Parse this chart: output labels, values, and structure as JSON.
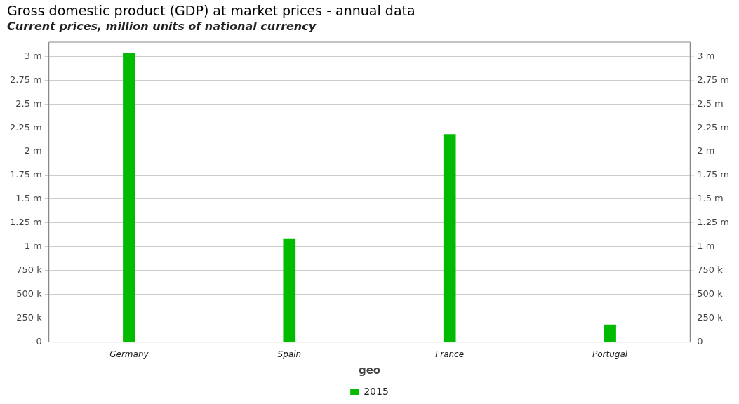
{
  "chart_data": {
    "type": "bar",
    "title": "Gross domestic product (GDP) at market prices - annual data",
    "subtitle": "Current prices, million units of national currency",
    "xlabel": "geo",
    "categories": [
      "Germany",
      "Spain",
      "France",
      "Portugal"
    ],
    "series": [
      {
        "name": "2015",
        "color": "#00bb00",
        "values": [
          3030000,
          1080000,
          2180000,
          180000
        ]
      }
    ],
    "ylim": [
      0,
      3150000
    ],
    "yticks": [
      {
        "value": 0,
        "label": "0"
      },
      {
        "value": 250000,
        "label": "250 k"
      },
      {
        "value": 500000,
        "label": "500 k"
      },
      {
        "value": 750000,
        "label": "750 k"
      },
      {
        "value": 1000000,
        "label": "1 m"
      },
      {
        "value": 1250000,
        "label": "1.25 m"
      },
      {
        "value": 1500000,
        "label": "1.5 m"
      },
      {
        "value": 1750000,
        "label": "1.75 m"
      },
      {
        "value": 2000000,
        "label": "2 m"
      },
      {
        "value": 2250000,
        "label": "2.25 m"
      },
      {
        "value": 2500000,
        "label": "2.5 m"
      },
      {
        "value": 2750000,
        "label": "2.75 m"
      },
      {
        "value": 3000000,
        "label": "3 m"
      }
    ],
    "y2lim": [
      0,
      3150000
    ],
    "y2ticks": [
      {
        "value": 0,
        "label": "0"
      },
      {
        "value": 250000,
        "label": "250 k"
      },
      {
        "value": 500000,
        "label": "500 k"
      },
      {
        "value": 750000,
        "label": "750 k"
      },
      {
        "value": 1000000,
        "label": "1 m"
      },
      {
        "value": 1250000,
        "label": "1.25 m"
      },
      {
        "value": 1500000,
        "label": "1.5 m"
      },
      {
        "value": 1750000,
        "label": "1.75 m"
      },
      {
        "value": 2000000,
        "label": "2 m"
      },
      {
        "value": 2250000,
        "label": "2.25 m"
      },
      {
        "value": 2500000,
        "label": "2.5 m"
      },
      {
        "value": 2750000,
        "label": "2.75 m"
      },
      {
        "value": 3000000,
        "label": "3 m"
      }
    ],
    "grid": "y",
    "legend": "bottom"
  }
}
